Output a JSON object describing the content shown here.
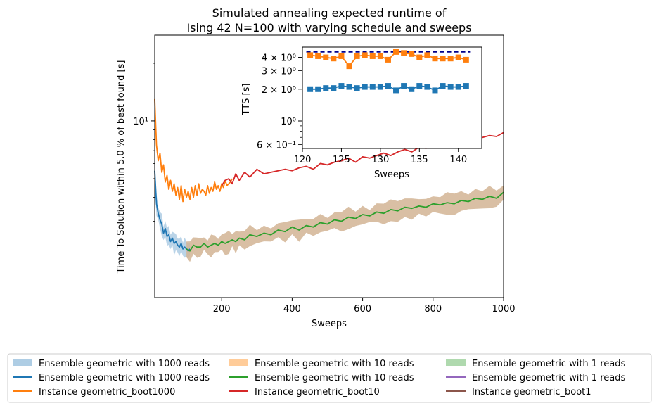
{
  "chart_data": [
    {
      "type": "line",
      "title_lines": [
        "Simulated annealing expected runtime of",
        "Ising 42 N=100 with varying schedule and sweeps"
      ],
      "xlabel": "Sweeps",
      "ylabel": "Time To Solution within 5.0 % of best found [s]",
      "xlim": [
        10,
        1000
      ],
      "ylim": [
        1.2,
        28
      ],
      "yscale": "log",
      "x_ticks": [
        200,
        400,
        600,
        800,
        1000
      ],
      "x_tick_labels": [
        "200",
        "400",
        "600",
        "800",
        "1000"
      ],
      "y_ticks": [
        10
      ],
      "y_tick_labels": [
        "10¹"
      ],
      "series": [
        {
          "name": "Ensemble geometric with 1000 reads",
          "color": "#1f77b4",
          "x": [
            10,
            15,
            20,
            25,
            30,
            35,
            40,
            45,
            50,
            55,
            60,
            65,
            70,
            75,
            80,
            85,
            90,
            95,
            100,
            105,
            110
          ],
          "y": [
            5.5,
            3.7,
            3.3,
            3.05,
            2.9,
            2.6,
            2.75,
            2.5,
            2.55,
            2.35,
            2.45,
            2.3,
            2.35,
            2.25,
            2.2,
            2.3,
            2.15,
            2.2,
            2.15,
            2.1,
            2.15
          ],
          "band_color": "#aecde4"
        },
        {
          "name": "Instance geometric_boot1000",
          "color": "#ff7f0e",
          "x": [
            10,
            15,
            20,
            25,
            30,
            35,
            40,
            45,
            50,
            55,
            60,
            65,
            70,
            75,
            80,
            85,
            90,
            95,
            100,
            105,
            110,
            115,
            120,
            125,
            130,
            135,
            140,
            145,
            150,
            155,
            160,
            165,
            170,
            175,
            180,
            185,
            190,
            195,
            200,
            205,
            210,
            215,
            220,
            225,
            230
          ],
          "y": [
            13,
            7.5,
            6.2,
            6.8,
            5.4,
            5.9,
            4.8,
            5.2,
            4.4,
            4.9,
            4.3,
            4.7,
            4.1,
            4.5,
            3.9,
            4.6,
            3.8,
            4.4,
            4.0,
            4.3,
            3.9,
            4.5,
            4.0,
            4.6,
            4.1,
            4.7,
            4.2,
            4.4,
            4.3,
            4.1,
            4.6,
            4.2,
            4.5,
            4.3,
            4.8,
            4.4,
            4.6,
            4.3,
            4.7,
            4.5,
            4.9,
            4.6,
            4.7,
            4.8,
            5.0
          ]
        },
        {
          "name": "Ensemble geometric with 10 reads",
          "color": "#2ca02c",
          "x": [
            100,
            110,
            120,
            130,
            140,
            150,
            160,
            170,
            180,
            190,
            200,
            210,
            220,
            230,
            240,
            250,
            265,
            280,
            300,
            320,
            340,
            360,
            380,
            400,
            420,
            440,
            460,
            480,
            500,
            520,
            540,
            560,
            580,
            600,
            620,
            640,
            660,
            680,
            700,
            720,
            740,
            760,
            780,
            800,
            820,
            840,
            860,
            880,
            900,
            920,
            940,
            960,
            980,
            1000
          ],
          "y": [
            2.15,
            2.1,
            2.25,
            2.2,
            2.2,
            2.3,
            2.2,
            2.25,
            2.3,
            2.25,
            2.35,
            2.3,
            2.35,
            2.4,
            2.35,
            2.45,
            2.4,
            2.55,
            2.5,
            2.6,
            2.55,
            2.7,
            2.65,
            2.8,
            2.7,
            2.85,
            2.8,
            2.95,
            2.9,
            3.05,
            3.0,
            3.15,
            3.1,
            3.25,
            3.2,
            3.35,
            3.3,
            3.45,
            3.4,
            3.55,
            3.5,
            3.6,
            3.55,
            3.7,
            3.65,
            3.75,
            3.7,
            3.85,
            3.8,
            3.95,
            3.9,
            4.05,
            3.95,
            4.25
          ],
          "band_color": "#d2b494"
        },
        {
          "name": "Instance geometric_boot10",
          "color": "#d62728",
          "x": [
            200,
            210,
            220,
            230,
            240,
            250,
            265,
            280,
            300,
            320,
            340,
            360,
            380,
            400,
            420,
            440,
            460,
            480,
            500,
            520,
            540,
            560,
            580,
            600,
            620,
            640,
            660,
            680,
            700,
            720,
            740,
            760,
            780,
            800,
            820,
            840,
            860,
            880,
            900,
            920,
            940,
            960,
            980,
            1000
          ],
          "y": [
            4.6,
            4.9,
            5.0,
            4.7,
            5.3,
            4.9,
            5.4,
            5.1,
            5.6,
            5.3,
            5.4,
            5.5,
            5.6,
            5.5,
            5.7,
            5.8,
            5.6,
            6.0,
            5.9,
            6.1,
            6.2,
            6.4,
            6.1,
            6.5,
            6.4,
            6.6,
            6.8,
            6.6,
            6.9,
            7.1,
            6.9,
            7.3,
            7.2,
            7.5,
            7.3,
            7.6,
            7.8,
            7.6,
            8.0,
            7.8,
            8.2,
            8.4,
            8.3,
            8.7
          ]
        }
      ]
    },
    {
      "type": "scatter",
      "role": "inset",
      "xlabel": "Sweeps",
      "ylabel": "TTS [s]",
      "xlim": [
        120,
        143
      ],
      "ylim": [
        0.55,
        5.0
      ],
      "yscale": "log",
      "x_ticks": [
        120,
        125,
        130,
        135,
        140
      ],
      "x_tick_labels": [
        "120",
        "125",
        "130",
        "135",
        "140"
      ],
      "y_ticks": [
        0.6,
        1,
        2,
        3,
        4
      ],
      "y_tick_labels": [
        "6 × 10⁻¹",
        "10⁰",
        "2 × 10⁰",
        "3 × 10⁰",
        "4 × 10⁰"
      ],
      "reference_line": {
        "y": 4.5,
        "color": "#00008b",
        "style": "dashed"
      },
      "series": [
        {
          "name": "Instance TTS (orange)",
          "color": "#ff7f0e",
          "x": [
            121,
            122,
            123,
            124,
            125,
            126,
            127,
            128,
            129,
            130,
            131,
            132,
            133,
            134,
            135,
            136,
            137,
            138,
            139,
            140,
            141
          ],
          "y": [
            4.2,
            4.1,
            4.0,
            3.9,
            4.1,
            3.3,
            4.1,
            4.2,
            4.1,
            4.1,
            3.8,
            4.5,
            4.4,
            4.3,
            4.0,
            4.2,
            3.9,
            3.9,
            3.9,
            4.0,
            3.8
          ]
        },
        {
          "name": "Ensemble TTS (blue)",
          "color": "#1f77b4",
          "x": [
            121,
            122,
            123,
            124,
            125,
            126,
            127,
            128,
            129,
            130,
            131,
            132,
            133,
            134,
            135,
            136,
            137,
            138,
            139,
            140,
            141
          ],
          "y": [
            2.0,
            2.0,
            2.05,
            2.05,
            2.15,
            2.1,
            2.05,
            2.1,
            2.1,
            2.1,
            2.15,
            1.95,
            2.15,
            2.0,
            2.15,
            2.1,
            1.95,
            2.15,
            2.1,
            2.1,
            2.15
          ]
        }
      ]
    }
  ],
  "legend": {
    "entries": [
      {
        "label": "Ensemble geometric with 1000 reads",
        "kind": "patch",
        "color": "#aecde4"
      },
      {
        "label": "Ensemble geometric with 1000 reads",
        "kind": "line",
        "color": "#1f77b4"
      },
      {
        "label": "Instance geometric_boot1000",
        "kind": "line",
        "color": "#ff7f0e"
      },
      {
        "label": "Ensemble geometric with 10 reads",
        "kind": "patch",
        "color": "#ffcc99"
      },
      {
        "label": "Ensemble geometric with 10 reads",
        "kind": "line",
        "color": "#2ca02c"
      },
      {
        "label": "Instance geometric_boot10",
        "kind": "line",
        "color": "#d62728"
      },
      {
        "label": "Ensemble geometric with 1 reads",
        "kind": "patch",
        "color": "#afd9ae"
      },
      {
        "label": "Ensemble geometric with 1 reads",
        "kind": "line",
        "color": "#9467bd"
      },
      {
        "label": "Instance geometric_boot1",
        "kind": "line",
        "color": "#8c564b"
      }
    ]
  }
}
